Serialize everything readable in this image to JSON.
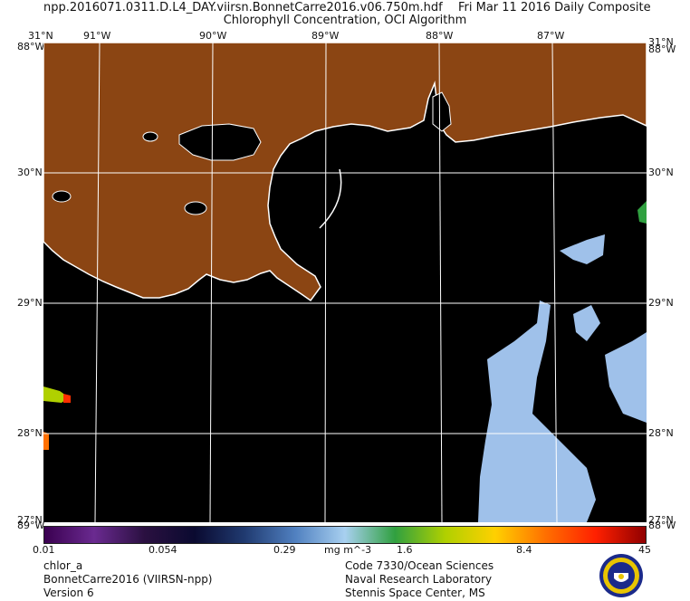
{
  "header": {
    "filename": "npp.2016071.0311.D.L4_DAY.viirsn.BonnetCarre2016.v06.750m.hdf",
    "date_text": "Fri Mar 11 2016 Daily Composite",
    "subtitle": "Chlorophyll Concentration, OCI Algorithm"
  },
  "map": {
    "top_lon_labels": [
      "91°W",
      "90°W",
      "89°W",
      "88°W",
      "87°W"
    ],
    "left_lat_labels": [
      "30°N",
      "29°N",
      "28°N"
    ],
    "right_lat_labels": [
      "30°N",
      "29°N",
      "28°N"
    ],
    "corner_labels": {
      "top_left": "31°N",
      "top_left_overlap": "88°W",
      "top_right": "31°N",
      "top_right_overlap": "88°W",
      "bottom_left": "27°N",
      "bottom_left_overlap": "89°W",
      "bottom_right": "27°N",
      "bottom_right_overlap": "88°W"
    },
    "colors": {
      "land": "#8B4513",
      "water": "#000000",
      "coastline": "#ffffff",
      "grid": "#ffffff",
      "low_chl": "#9fc1ea",
      "high_chl": "#ff3000"
    }
  },
  "colorbar": {
    "tick_labels": [
      "0.01",
      "0.054",
      "0.29",
      "mg m^-3",
      "1.6",
      "8.4",
      "45"
    ],
    "colors": [
      "#3a0050",
      "#6a2a90",
      "#2a1040",
      "#0a0a30",
      "#203a70",
      "#5080c0",
      "#a8d0f0",
      "#30a040",
      "#b0d000",
      "#ffd000",
      "#ff7000",
      "#ff2000",
      "#900000"
    ]
  },
  "footer": {
    "left": [
      "chlor_a",
      "BonnetCarre2016 (VIIRSN-npp)",
      "Version 6"
    ],
    "right": [
      "Code 7330/Ocean Sciences",
      "Naval Research Laboratory",
      "Stennis Space Center, MS"
    ],
    "seal_icon": "navy-seal-icon"
  }
}
